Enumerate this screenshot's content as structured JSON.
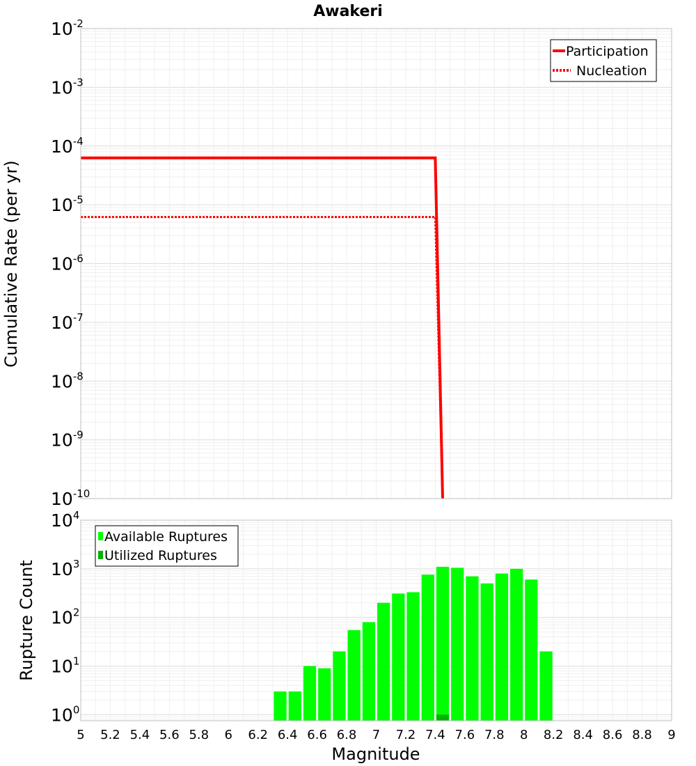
{
  "chart_data": [
    {
      "type": "line",
      "title": "Awakeri",
      "xlabel": "",
      "ylabel": "Cumulative Rate (per yr)",
      "xlim": [
        5,
        9
      ],
      "ylim": [
        1e-10,
        0.01
      ],
      "yscale": "log",
      "grid": true,
      "legend_position": "top-right",
      "yticks": [
        {
          "base": "10",
          "exp": "-10",
          "value": 1e-10
        },
        {
          "base": "10",
          "exp": "-9",
          "value": 1e-09
        },
        {
          "base": "10",
          "exp": "-8",
          "value": 1e-08
        },
        {
          "base": "10",
          "exp": "-7",
          "value": 1e-07
        },
        {
          "base": "10",
          "exp": "-6",
          "value": 1e-06
        },
        {
          "base": "10",
          "exp": "-5",
          "value": 1e-05
        },
        {
          "base": "10",
          "exp": "-4",
          "value": 0.0001
        },
        {
          "base": "10",
          "exp": "-3",
          "value": 0.001
        },
        {
          "base": "10",
          "exp": "-2",
          "value": 0.01
        }
      ],
      "series": [
        {
          "name": "Participation",
          "color": "#ff0000",
          "style": "solid",
          "x": [
            5.0,
            7.4,
            7.45
          ],
          "y": [
            6.3e-05,
            6.3e-05,
            1e-10
          ]
        },
        {
          "name": "Nucleation",
          "color": "#ff0000",
          "style": "dotted",
          "x": [
            5.0,
            7.4,
            7.45
          ],
          "y": [
            6.2e-06,
            6.2e-06,
            1e-10
          ]
        }
      ]
    },
    {
      "type": "bar",
      "title": "",
      "xlabel": "Magnitude",
      "ylabel": "Rupture Count",
      "xlim": [
        5,
        9
      ],
      "ylim": [
        0.75,
        10000
      ],
      "yscale": "log",
      "grid": true,
      "legend_position": "top-left",
      "bin_width": 0.1,
      "xticks": [
        "5",
        "5.2",
        "5.4",
        "5.6",
        "5.8",
        "6",
        "6.2",
        "6.4",
        "6.6",
        "6.8",
        "7",
        "7.2",
        "7.4",
        "7.6",
        "7.8",
        "8",
        "8.2",
        "8.4",
        "8.6",
        "8.8",
        "9"
      ],
      "yticks": [
        {
          "base": "10",
          "exp": "0",
          "value": 1
        },
        {
          "base": "10",
          "exp": "1",
          "value": 10
        },
        {
          "base": "10",
          "exp": "2",
          "value": 100
        },
        {
          "base": "10",
          "exp": "3",
          "value": 1000
        },
        {
          "base": "10",
          "exp": "4",
          "value": 10000
        }
      ],
      "series": [
        {
          "name": "Available Ruptures",
          "color": "#00ff00",
          "x": [
            6.35,
            6.45,
            6.55,
            6.65,
            6.75,
            6.85,
            6.95,
            7.05,
            7.15,
            7.25,
            7.35,
            7.45,
            7.55,
            7.65,
            7.75,
            7.85,
            7.95,
            8.05,
            8.15
          ],
          "values": [
            3,
            3,
            10,
            9,
            20,
            55,
            80,
            200,
            310,
            330,
            760,
            1100,
            1050,
            700,
            500,
            800,
            1000,
            600,
            20
          ]
        },
        {
          "name": "Utilized Ruptures",
          "color": "#00b400",
          "x": [
            7.45
          ],
          "values": [
            1
          ]
        }
      ]
    }
  ]
}
